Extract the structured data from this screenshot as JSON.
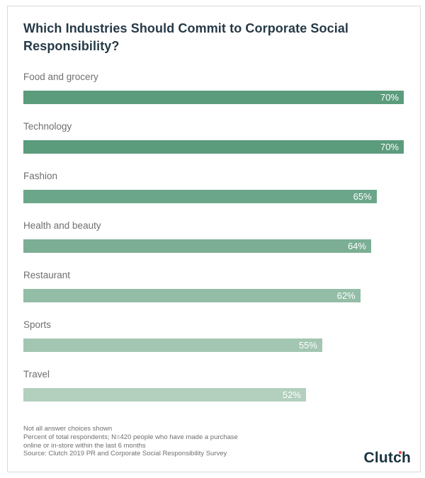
{
  "chart": {
    "title": "Which Industries Should Commit to Corporate Social Responsibility?"
  },
  "chart_data": {
    "type": "bar",
    "orientation": "horizontal",
    "title": "Which Industries Should Commit to Corporate Social Responsibility?",
    "categories": [
      "Food and grocery",
      "Technology",
      "Fashion",
      "Health and beauty",
      "Restaurant",
      "Sports",
      "Travel"
    ],
    "values": [
      70,
      70,
      65,
      64,
      62,
      55,
      52
    ],
    "value_labels": [
      "70%",
      "70%",
      "65%",
      "64%",
      "62%",
      "55%",
      "52%"
    ],
    "bar_colors": [
      "#5b9c7c",
      "#5b9c7c",
      "#6ca68a",
      "#7bae94",
      "#93bda7",
      "#a3c6b2",
      "#b3cfbe"
    ],
    "xlim": [
      0,
      70
    ],
    "value_label_position": "inside-end",
    "grid": false,
    "legend": false
  },
  "footnotes": {
    "lines": [
      "Not all answer choices shown",
      "Percent of total respondents; N=420 people who have made a purchase",
      "online or in-store within the last 6 months",
      "Source: Clutch 2019 PR and Corporate Social Responsibility Survey"
    ]
  },
  "branding": {
    "logo_text": "Clutch",
    "logo_color": "#19323e",
    "logo_dot_color": "#e8403a"
  },
  "colors": {
    "card_border": "#d8d8d8",
    "title_text": "#263a47",
    "category_text": "#6f6f6f",
    "value_text": "#ffffff",
    "footnote_text": "#6f6f6f"
  }
}
